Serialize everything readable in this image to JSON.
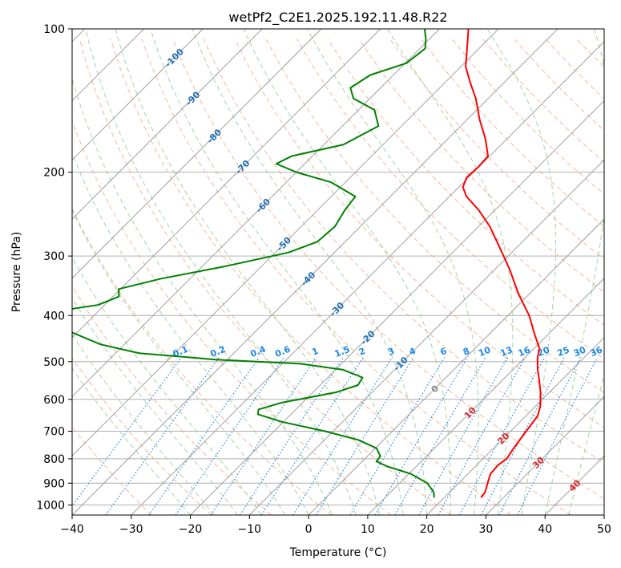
{
  "chart_data": {
    "type": "line",
    "title": "wetPf2_C2E1.2025.192.11.48.R22",
    "xlabel": "Temperature (°C)",
    "ylabel": "Pressure (hPa)",
    "xlim": [
      -40,
      50
    ],
    "ylim": [
      1050,
      100
    ],
    "y_scale": "log",
    "grid": true,
    "x_ticks": [
      -40,
      -30,
      -20,
      -10,
      0,
      10,
      20,
      30,
      40,
      50
    ],
    "y_ticks": [
      100,
      200,
      300,
      400,
      500,
      600,
      700,
      800,
      900,
      1000
    ],
    "series": [
      {
        "name": "",
        "color": "#ff0000",
        "points": [
          {
            "p": 965,
            "t": 26.2
          },
          {
            "p": 940,
            "t": 26.0
          },
          {
            "p": 900,
            "t": 24.9
          },
          {
            "p": 860,
            "t": 23.8
          },
          {
            "p": 825,
            "t": 23.6
          },
          {
            "p": 800,
            "t": 24.0
          },
          {
            "p": 760,
            "t": 23.4
          },
          {
            "p": 720,
            "t": 22.9
          },
          {
            "p": 680,
            "t": 22.4
          },
          {
            "p": 650,
            "t": 22.0
          },
          {
            "p": 620,
            "t": 20.8
          },
          {
            "p": 580,
            "t": 18.5
          },
          {
            "p": 545,
            "t": 16.1
          },
          {
            "p": 520,
            "t": 14.2
          },
          {
            "p": 490,
            "t": 12.1
          },
          {
            "p": 470,
            "t": 11.0
          },
          {
            "p": 440,
            "t": 7.9
          },
          {
            "p": 400,
            "t": 3.6
          },
          {
            "p": 360,
            "t": -1.9
          },
          {
            "p": 320,
            "t": -7.5
          },
          {
            "p": 290,
            "t": -12.5
          },
          {
            "p": 260,
            "t": -18.1
          },
          {
            "p": 240,
            "t": -22.8
          },
          {
            "p": 225,
            "t": -27.1
          },
          {
            "p": 215,
            "t": -29.3
          },
          {
            "p": 205,
            "t": -30.3
          },
          {
            "p": 195,
            "t": -30.1
          },
          {
            "p": 185,
            "t": -30.3
          },
          {
            "p": 170,
            "t": -33.7
          },
          {
            "p": 155,
            "t": -37.9
          },
          {
            "p": 140,
            "t": -42.1
          },
          {
            "p": 130,
            "t": -45.6
          },
          {
            "p": 120,
            "t": -49.2
          },
          {
            "p": 110,
            "t": -52.0
          },
          {
            "p": 100,
            "t": -55.1
          }
        ]
      },
      {
        "name": "",
        "color": "#008000",
        "points": [
          {
            "p": 965,
            "t": 18.3
          },
          {
            "p": 940,
            "t": 17.3
          },
          {
            "p": 900,
            "t": 14.7
          },
          {
            "p": 860,
            "t": 10.3
          },
          {
            "p": 830,
            "t": 5.1
          },
          {
            "p": 810,
            "t": 2.4
          },
          {
            "p": 790,
            "t": 2.2
          },
          {
            "p": 760,
            "t": 0.2
          },
          {
            "p": 730,
            "t": -4.3
          },
          {
            "p": 700,
            "t": -11.4
          },
          {
            "p": 670,
            "t": -20.0
          },
          {
            "p": 645,
            "t": -25.6
          },
          {
            "p": 630,
            "t": -26.3
          },
          {
            "p": 610,
            "t": -23.6
          },
          {
            "p": 580,
            "t": -16.1
          },
          {
            "p": 560,
            "t": -13.6
          },
          {
            "p": 540,
            "t": -14.1
          },
          {
            "p": 520,
            "t": -18.7
          },
          {
            "p": 505,
            "t": -27.0
          },
          {
            "p": 495,
            "t": -42.0
          },
          {
            "p": 480,
            "t": -56.0
          },
          {
            "p": 460,
            "t": -64.0
          },
          {
            "p": 430,
            "t": -72.0
          },
          {
            "p": 410,
            "t": -77.0
          },
          {
            "p": 390,
            "t": -76.2
          },
          {
            "p": 380,
            "t": -71.1
          },
          {
            "p": 365,
            "t": -69.0
          },
          {
            "p": 352,
            "t": -70.3
          },
          {
            "p": 335,
            "t": -65.0
          },
          {
            "p": 315,
            "t": -56.0
          },
          {
            "p": 295,
            "t": -47.8
          },
          {
            "p": 280,
            "t": -44.7
          },
          {
            "p": 260,
            "t": -44.3
          },
          {
            "p": 240,
            "t": -45.4
          },
          {
            "p": 225,
            "t": -45.9
          },
          {
            "p": 210,
            "t": -52.4
          },
          {
            "p": 200,
            "t": -60.0
          },
          {
            "p": 192,
            "t": -64.8
          },
          {
            "p": 185,
            "t": -63.5
          },
          {
            "p": 175,
            "t": -56.7
          },
          {
            "p": 160,
            "t": -53.9
          },
          {
            "p": 148,
            "t": -57.3
          },
          {
            "p": 140,
            "t": -62.8
          },
          {
            "p": 133,
            "t": -65.1
          },
          {
            "p": 125,
            "t": -63.9
          },
          {
            "p": 118,
            "t": -59.8
          },
          {
            "p": 110,
            "t": -59.1
          },
          {
            "p": 105,
            "t": -60.6
          },
          {
            "p": 100,
            "t": -62.5
          }
        ]
      }
    ],
    "isotherm_labels": [
      {
        "text": "-100",
        "t": -100,
        "p": 115
      },
      {
        "text": "-90",
        "t": -90,
        "p": 140
      },
      {
        "text": "-80",
        "t": -80,
        "p": 168
      },
      {
        "text": "-70",
        "t": -70,
        "p": 195
      },
      {
        "text": "-60",
        "t": -60,
        "p": 235
      },
      {
        "text": "-50",
        "t": -50,
        "p": 283
      },
      {
        "text": "-40",
        "t": -40,
        "p": 335
      },
      {
        "text": "-30",
        "t": -30,
        "p": 388
      },
      {
        "text": "-20",
        "t": -20,
        "p": 445
      },
      {
        "text": "-10",
        "t": -10,
        "p": 505
      },
      {
        "text": "0",
        "t": 0,
        "p": 570
      },
      {
        "text": "10",
        "t": 10,
        "p": 640
      },
      {
        "text": "20",
        "t": 20,
        "p": 725
      },
      {
        "text": "30",
        "t": 30,
        "p": 815
      },
      {
        "text": "40",
        "t": 40,
        "p": 910
      }
    ],
    "mixing_ratio_labels": [
      "0.1",
      "0.2",
      "0.4",
      "0.6",
      "1",
      "1.5",
      "2",
      "3",
      "4",
      "6",
      "8",
      "10",
      "13",
      "16",
      "20",
      "25",
      "30",
      "36"
    ],
    "mixing_ratio_label_pressure": 490
  },
  "colors": {
    "temperature": "#ff0000",
    "dewpoint": "#008000",
    "isotherm": "#a0a0a0",
    "dry_adiabat": "#f4a582",
    "moist_adiabat": "#8fc98f",
    "mixing_ratio": "#1e88e5",
    "iso_label_cold": "#1f6fb5",
    "iso_label_zero": "#888888",
    "iso_label_warm": "#d62728"
  }
}
